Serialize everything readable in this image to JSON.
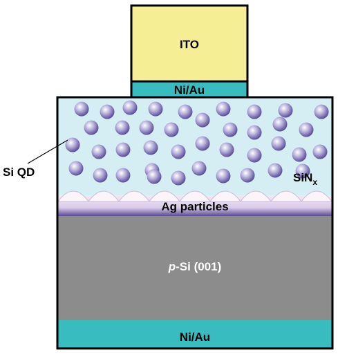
{
  "device": {
    "top_contact": {
      "label": "ITO"
    },
    "top_interlayer": {
      "label": "Ni/Au"
    },
    "dot_label": "Si QD",
    "matrix": {
      "label": "SiN",
      "subscript": "x"
    },
    "particles": {
      "label": "Ag particles"
    },
    "substrate": {
      "label_italic": "p",
      "label": "-Si (001)"
    },
    "bottom_contact": {
      "label": "Ni/Au"
    }
  }
}
